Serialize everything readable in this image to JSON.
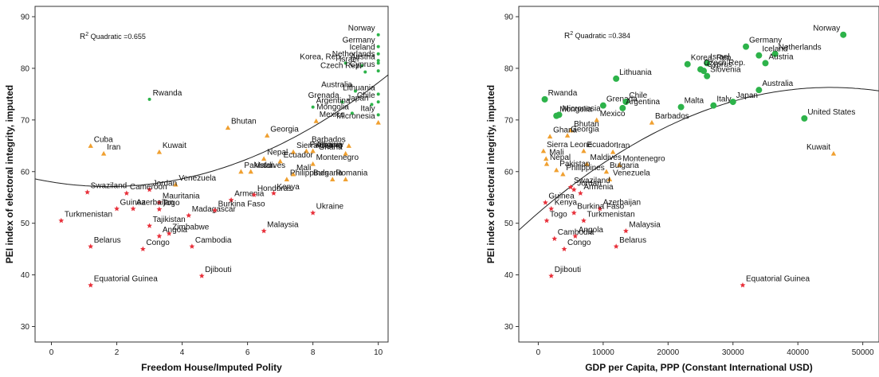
{
  "chart_data": [
    {
      "type": "scatter",
      "xlabel": "Freedom House/Imputed Polity",
      "ylabel": "PEI index of electoral integrity, imputed",
      "xlim": [
        -0.5,
        10.3
      ],
      "ylim": [
        27,
        92
      ],
      "xticks": [
        "0",
        "2",
        "4",
        "6",
        "8",
        "10"
      ],
      "yticks": [
        "30",
        "40",
        "50",
        "60",
        "70",
        "80",
        "90"
      ],
      "annotation": {
        "base": "R",
        "sup": "2",
        "rest": " Quadratic =0.655"
      },
      "fit": {
        "type": "quadratic",
        "a": 0.2954,
        "b": -1.03,
        "c": 58.0
      },
      "colors": {
        "green": "#2db34a",
        "orange": "#f0a030",
        "red": "#e8303a",
        "line": "#222222"
      },
      "points": [
        {
          "label": "Norway",
          "x": 10,
          "y": 86.5,
          "g": "green"
        },
        {
          "label": "Germany",
          "x": 10,
          "y": 84.2,
          "g": "green"
        },
        {
          "label": "Iceland",
          "x": 10,
          "y": 82.8,
          "g": "green"
        },
        {
          "label": "Netherlands",
          "x": 10,
          "y": 81.5,
          "g": "green"
        },
        {
          "label": "Austria",
          "x": 10,
          "y": 81.0,
          "g": "green"
        },
        {
          "label": "Korea, Rep.",
          "x": 9.0,
          "y": 81.0,
          "g": "green"
        },
        {
          "label": "Israel",
          "x": 9.5,
          "y": 80.5,
          "g": "green"
        },
        {
          "label": "Cyprus",
          "x": 10,
          "y": 79.5,
          "g": "green"
        },
        {
          "label": "Czech Rep.",
          "x": 9.6,
          "y": 79.3,
          "g": "green"
        },
        {
          "label": "Australia",
          "x": 9.3,
          "y": 75.6,
          "g": "green"
        },
        {
          "label": "Lithuania",
          "x": 10,
          "y": 75.0,
          "g": "green"
        },
        {
          "label": "Chile",
          "x": 10,
          "y": 73.5,
          "g": "green"
        },
        {
          "label": "Grenada",
          "x": 8.9,
          "y": 73.5,
          "g": "green"
        },
        {
          "label": "Japan",
          "x": 9.8,
          "y": 73.0,
          "g": "green"
        },
        {
          "label": "Argentina",
          "x": 8.0,
          "y": 72.5,
          "g": "green"
        },
        {
          "label": "Mongolia",
          "x": 9.2,
          "y": 71.3,
          "g": "green"
        },
        {
          "label": "Italy",
          "x": 10,
          "y": 71.0,
          "g": "green"
        },
        {
          "label": "Rwanda",
          "x": 3.0,
          "y": 74.0,
          "g": "green"
        },
        {
          "label": "Bhutan",
          "x": 5.4,
          "y": 68.5,
          "g": "orange"
        },
        {
          "label": "Micronesia",
          "x": 10,
          "y": 69.5,
          "g": "orange"
        },
        {
          "label": "Georgia",
          "x": 6.6,
          "y": 67.0,
          "g": "orange"
        },
        {
          "label": "Mexico",
          "x": 8.1,
          "y": 69.8,
          "g": "orange"
        },
        {
          "label": "Cuba",
          "x": 1.2,
          "y": 65.0,
          "g": "orange"
        },
        {
          "label": "Iran",
          "x": 1.6,
          "y": 63.5,
          "g": "orange"
        },
        {
          "label": "Kuwait",
          "x": 3.3,
          "y": 63.8,
          "g": "orange"
        },
        {
          "label": "Sierra Leone",
          "x": 7.4,
          "y": 63.8,
          "g": "orange"
        },
        {
          "label": "Paraguay",
          "x": 7.8,
          "y": 64.0,
          "g": "orange"
        },
        {
          "label": "Barbados",
          "x": 9.1,
          "y": 65.0,
          "g": "orange"
        },
        {
          "label": "Albania",
          "x": 8.0,
          "y": 64.0,
          "g": "orange"
        },
        {
          "label": "Ghana",
          "x": 9.0,
          "y": 63.5,
          "g": "orange"
        },
        {
          "label": "Ecuador",
          "x": 7.0,
          "y": 62.0,
          "g": "orange"
        },
        {
          "label": "Nepal",
          "x": 6.5,
          "y": 62.5,
          "g": "orange"
        },
        {
          "label": "Montenegro",
          "x": 8.0,
          "y": 61.5,
          "g": "orange"
        },
        {
          "label": "Pakistan",
          "x": 5.8,
          "y": 60.0,
          "g": "orange"
        },
        {
          "label": "Mali",
          "x": 7.4,
          "y": 59.5,
          "g": "orange"
        },
        {
          "label": "Maldives",
          "x": 6.1,
          "y": 60.0,
          "g": "orange"
        },
        {
          "label": "Philippines",
          "x": 7.2,
          "y": 58.5,
          "g": "orange"
        },
        {
          "label": "Romania",
          "x": 8.6,
          "y": 58.5,
          "g": "orange"
        },
        {
          "label": "Bulgaria",
          "x": 9.0,
          "y": 58.5,
          "g": "orange"
        },
        {
          "label": "Venezuela",
          "x": 3.8,
          "y": 57.5,
          "g": "orange"
        },
        {
          "label": "Swaziland",
          "x": 1.1,
          "y": 56.0,
          "g": "red"
        },
        {
          "label": "Jordan",
          "x": 3.0,
          "y": 56.5,
          "g": "red"
        },
        {
          "label": "Cameroon",
          "x": 2.3,
          "y": 55.8,
          "g": "red"
        },
        {
          "label": "Armenia",
          "x": 5.5,
          "y": 54.5,
          "g": "red"
        },
        {
          "label": "Honduras",
          "x": 6.2,
          "y": 55.5,
          "g": "red"
        },
        {
          "label": "Kenya",
          "x": 6.8,
          "y": 55.8,
          "g": "red"
        },
        {
          "label": "Mauritania",
          "x": 3.3,
          "y": 54.0,
          "g": "red"
        },
        {
          "label": "Guinea",
          "x": 2.0,
          "y": 52.8,
          "g": "red"
        },
        {
          "label": "Togo",
          "x": 3.3,
          "y": 52.7,
          "g": "red"
        },
        {
          "label": "Turkmenistan",
          "x": 0.3,
          "y": 50.5,
          "g": "red"
        },
        {
          "label": "Azerbaijan",
          "x": 2.5,
          "y": 52.8,
          "g": "red"
        },
        {
          "label": "Madagascar",
          "x": 4.2,
          "y": 51.5,
          "g": "red"
        },
        {
          "label": "Burkina Faso",
          "x": 5.0,
          "y": 52.5,
          "g": "red"
        },
        {
          "label": "Ukraine",
          "x": 8.0,
          "y": 52.0,
          "g": "red"
        },
        {
          "label": "Belarus",
          "x": 1.2,
          "y": 45.5,
          "g": "red"
        },
        {
          "label": "Tajikistan",
          "x": 3.0,
          "y": 49.5,
          "g": "red"
        },
        {
          "label": "Zimbabwe",
          "x": 3.6,
          "y": 48.0,
          "g": "red"
        },
        {
          "label": "Angola",
          "x": 3.3,
          "y": 47.5,
          "g": "red"
        },
        {
          "label": "Malaysia",
          "x": 6.5,
          "y": 48.5,
          "g": "red"
        },
        {
          "label": "Congo",
          "x": 2.8,
          "y": 45.0,
          "g": "red"
        },
        {
          "label": "Cambodia",
          "x": 4.3,
          "y": 45.5,
          "g": "red"
        },
        {
          "label": "Djibouti",
          "x": 4.6,
          "y": 39.8,
          "g": "red"
        },
        {
          "label": "Equatorial Guinea",
          "x": 1.2,
          "y": 38.0,
          "g": "red"
        }
      ]
    },
    {
      "type": "scatter",
      "xlabel": "GDP per Capita, PPP (Constant International USD)",
      "ylabel": "PEI index of electoral integrity, imputed",
      "xlim": [
        -3000,
        52500
      ],
      "ylim": [
        27,
        92
      ],
      "xticks": [
        "0",
        "10000",
        "20000",
        "30000",
        "40000",
        "50000"
      ],
      "yticks": [
        "30",
        "40",
        "50",
        "60",
        "70",
        "80",
        "90"
      ],
      "annotation": {
        "base": "R",
        "sup": "2",
        "rest": " Quadratic =0.384"
      },
      "fit": {
        "type": "quadratic",
        "a": -1.2e-08,
        "b": 0.00108,
        "c": 52.0
      },
      "colors": {
        "green": "#2db34a",
        "orange": "#f0a030",
        "red": "#e8303a",
        "line": "#222222"
      },
      "points": [
        {
          "label": "Norway",
          "x": 47000,
          "y": 86.5,
          "g": "green"
        },
        {
          "label": "Germany",
          "x": 32000,
          "y": 84.2,
          "g": "green"
        },
        {
          "label": "Netherlands",
          "x": 36500,
          "y": 82.8,
          "g": "green"
        },
        {
          "label": "Iceland",
          "x": 34000,
          "y": 82.5,
          "g": "green"
        },
        {
          "label": "Korea, Rep.",
          "x": 23000,
          "y": 80.8,
          "g": "green"
        },
        {
          "label": "Israel",
          "x": 26000,
          "y": 81.0,
          "g": "green"
        },
        {
          "label": "Czech Rep.",
          "x": 25000,
          "y": 79.8,
          "g": "green"
        },
        {
          "label": "Austria",
          "x": 35000,
          "y": 81.0,
          "g": "green"
        },
        {
          "label": "Slovenia",
          "x": 26000,
          "y": 78.5,
          "g": "green"
        },
        {
          "label": "Lithuania",
          "x": 12000,
          "y": 78.0,
          "g": "green"
        },
        {
          "label": "Cyprus",
          "x": 25500,
          "y": 79.5,
          "g": "green"
        },
        {
          "label": "Rwanda",
          "x": 1000,
          "y": 74.0,
          "g": "green"
        },
        {
          "label": "Japan",
          "x": 30000,
          "y": 73.5,
          "g": "green"
        },
        {
          "label": "Australia",
          "x": 34000,
          "y": 75.8,
          "g": "green"
        },
        {
          "label": "Italy",
          "x": 27000,
          "y": 72.8,
          "g": "green"
        },
        {
          "label": "Grenada",
          "x": 10000,
          "y": 72.8,
          "g": "green"
        },
        {
          "label": "Chile",
          "x": 13500,
          "y": 73.5,
          "g": "green"
        },
        {
          "label": "Malta",
          "x": 22000,
          "y": 72.5,
          "g": "green"
        },
        {
          "label": "Argentina",
          "x": 13000,
          "y": 72.3,
          "g": "green"
        },
        {
          "label": "Micronesia",
          "x": 3200,
          "y": 71.0,
          "g": "green"
        },
        {
          "label": "Mongolia",
          "x": 2800,
          "y": 70.8,
          "g": "green"
        },
        {
          "label": "United States",
          "x": 41000,
          "y": 70.3,
          "g": "green"
        },
        {
          "label": "Bhutan",
          "x": 5000,
          "y": 68.0,
          "g": "orange"
        },
        {
          "label": "Mexico",
          "x": 9000,
          "y": 70.0,
          "g": "orange"
        },
        {
          "label": "Barbados",
          "x": 17500,
          "y": 69.5,
          "g": "orange"
        },
        {
          "label": "Georgia",
          "x": 4500,
          "y": 67.0,
          "g": "orange"
        },
        {
          "label": "Ghana",
          "x": 1800,
          "y": 66.8,
          "g": "orange"
        },
        {
          "label": "Sierra Leone",
          "x": 800,
          "y": 64.0,
          "g": "orange"
        },
        {
          "label": "Ecuador",
          "x": 7000,
          "y": 64.0,
          "g": "orange"
        },
        {
          "label": "Iran",
          "x": 11500,
          "y": 63.8,
          "g": "orange"
        },
        {
          "label": "Kuwait",
          "x": 45500,
          "y": 63.5,
          "g": "orange"
        },
        {
          "label": "Mali",
          "x": 1200,
          "y": 62.5,
          "g": "orange"
        },
        {
          "label": "Nepal",
          "x": 1300,
          "y": 61.5,
          "g": "orange"
        },
        {
          "label": "Maldives",
          "x": 7500,
          "y": 61.5,
          "g": "orange"
        },
        {
          "label": "Montenegro",
          "x": 12500,
          "y": 61.3,
          "g": "orange"
        },
        {
          "label": "Pakistan",
          "x": 2800,
          "y": 60.3,
          "g": "orange"
        },
        {
          "label": "Bulgaria",
          "x": 10500,
          "y": 60.0,
          "g": "orange"
        },
        {
          "label": "Philippines",
          "x": 3800,
          "y": 59.5,
          "g": "orange"
        },
        {
          "label": "Venezuela",
          "x": 11000,
          "y": 58.5,
          "g": "orange"
        },
        {
          "label": "Swaziland",
          "x": 5000,
          "y": 57.0,
          "g": "red"
        },
        {
          "label": "Jordan",
          "x": 5500,
          "y": 56.5,
          "g": "red"
        },
        {
          "label": "Guinea",
          "x": 1100,
          "y": 54.0,
          "g": "red"
        },
        {
          "label": "Armenia",
          "x": 6500,
          "y": 55.8,
          "g": "red"
        },
        {
          "label": "Kenya",
          "x": 2000,
          "y": 52.8,
          "g": "red"
        },
        {
          "label": "Azerbaijan",
          "x": 9500,
          "y": 52.8,
          "g": "red"
        },
        {
          "label": "Burkina Faso",
          "x": 5500,
          "y": 52.0,
          "g": "red"
        },
        {
          "label": "Togo",
          "x": 1300,
          "y": 50.5,
          "g": "red"
        },
        {
          "label": "Turkmenistan",
          "x": 7000,
          "y": 50.5,
          "g": "red"
        },
        {
          "label": "Malaysia",
          "x": 13500,
          "y": 48.5,
          "g": "red"
        },
        {
          "label": "Cambodia",
          "x": 2500,
          "y": 47.0,
          "g": "red"
        },
        {
          "label": "Angola",
          "x": 5700,
          "y": 47.5,
          "g": "red"
        },
        {
          "label": "Belarus",
          "x": 12000,
          "y": 45.5,
          "g": "red"
        },
        {
          "label": "Congo",
          "x": 4000,
          "y": 45.0,
          "g": "red"
        },
        {
          "label": "Djibouti",
          "x": 2000,
          "y": 39.8,
          "g": "red"
        },
        {
          "label": "Equatorial Guinea",
          "x": 31500,
          "y": 38.0,
          "g": "red"
        }
      ]
    }
  ]
}
